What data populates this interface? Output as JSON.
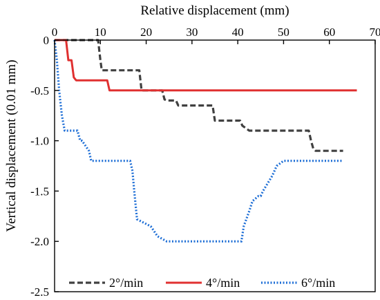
{
  "chart_data": {
    "type": "line",
    "title": "",
    "xlabel": "Relative displacement (mm)",
    "ylabel": "Vertical displacement (0.01 mm)",
    "x_axis_position": "top",
    "xlim": [
      0,
      70
    ],
    "ylim": [
      -2.5,
      0
    ],
    "x_ticks": [
      0,
      10,
      20,
      30,
      40,
      50,
      60,
      70
    ],
    "y_ticks": [
      0,
      -0.5,
      -1.0,
      -1.5,
      -2.0,
      -2.5
    ],
    "x_tick_labels": [
      "0",
      "10",
      "20",
      "30",
      "40",
      "50",
      "60",
      "70"
    ],
    "y_tick_labels": [
      "0",
      "-0.5",
      "-1.0",
      "-1.5",
      "-2.0",
      "-2.5"
    ],
    "grid": false,
    "legend_position": "bottom",
    "series": [
      {
        "name": "2°/min",
        "color": "#404040",
        "style": "dashed",
        "x": [
          0,
          9.5,
          10,
          10.3,
          11,
          18.5,
          19,
          23.5,
          24,
          24.6,
          26.5,
          27,
          34.5,
          35,
          40.5,
          41,
          42.5,
          43,
          55.5,
          56,
          56.5,
          57,
          63
        ],
        "y": [
          0,
          0,
          -0.2,
          -0.3,
          -0.3,
          -0.3,
          -0.5,
          -0.5,
          -0.59,
          -0.6,
          -0.6,
          -0.65,
          -0.65,
          -0.8,
          -0.8,
          -0.85,
          -0.9,
          -0.9,
          -0.9,
          -1.0,
          -1.08,
          -1.1,
          -1.1
        ]
      },
      {
        "name": "4°/min",
        "color": "#e03030",
        "style": "solid",
        "x": [
          0,
          2.5,
          3,
          3.7,
          4.2,
          4.7,
          11.5,
          12,
          66
        ],
        "y": [
          0,
          0,
          -0.2,
          -0.2,
          -0.37,
          -0.4,
          -0.4,
          -0.5,
          -0.5
        ]
      },
      {
        "name": "6°/min",
        "color": "#1f6fd6",
        "style": "dotted",
        "x": [
          0,
          0.5,
          1,
          1.6,
          2.2,
          3,
          5,
          5.6,
          6,
          7.5,
          8,
          9,
          16.5,
          17,
          17.4,
          18,
          21,
          22.5,
          24.5,
          40.8,
          41.3,
          42.5,
          43.2,
          44.5,
          45,
          45.5,
          47.5,
          48.5,
          50,
          63
        ],
        "y": [
          0,
          -0.2,
          -0.5,
          -0.75,
          -0.9,
          -0.9,
          -0.9,
          -1.0,
          -1.0,
          -1.1,
          -1.2,
          -1.2,
          -1.2,
          -1.3,
          -1.5,
          -1.78,
          -1.85,
          -1.95,
          -2.0,
          -2.0,
          -1.85,
          -1.7,
          -1.6,
          -1.55,
          -1.55,
          -1.5,
          -1.35,
          -1.25,
          -1.2,
          -1.2
        ]
      }
    ]
  }
}
